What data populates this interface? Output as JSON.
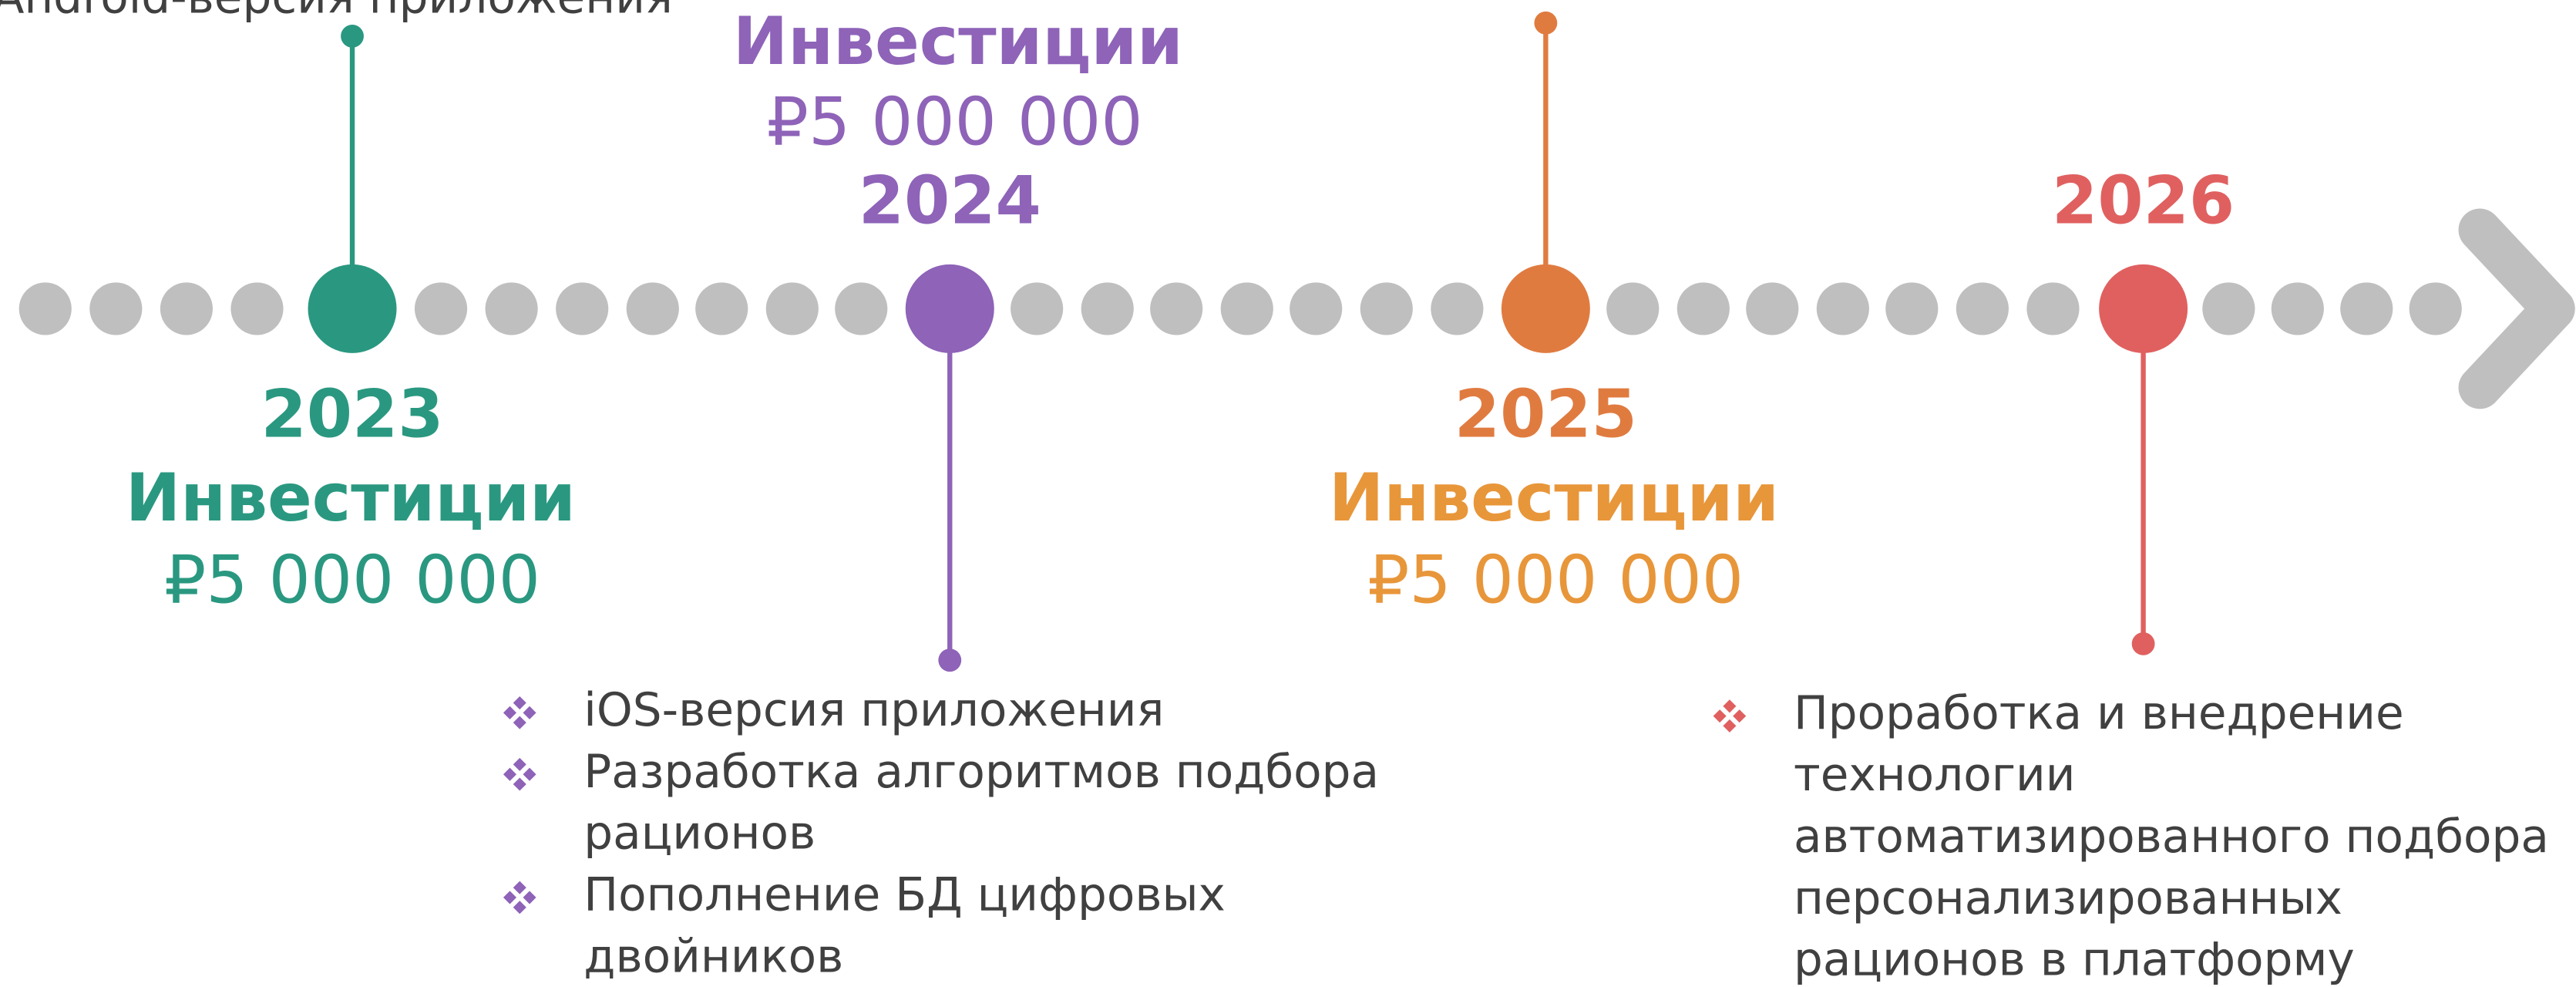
{
  "milestones": [
    {
      "year": "2023",
      "color": "#2a9880",
      "amount_color": "#2a9880",
      "investment": {
        "label": "Инвестиции",
        "amount": "₽5 000 000"
      },
      "items": [
        [
          "Android-версия приложения"
        ]
      ]
    },
    {
      "year": "2024",
      "color": "#8e63b8",
      "amount_color": "#8e63b8",
      "investment": {
        "label": "Инвестиции",
        "amount": "₽5 000 000"
      },
      "items": [
        [
          "iOS-версия приложения"
        ],
        [
          "Разработка алгоритмов подбора",
          "рационов"
        ],
        [
          "Пополнение БД цифровых",
          "двойников"
        ]
      ]
    },
    {
      "year": "2025",
      "color": "#e07b40",
      "amount_color": "#e8963a",
      "investment": {
        "label": "Инвестиции",
        "amount": "₽5 000 000"
      },
      "items": []
    },
    {
      "year": "2026",
      "color": "#e06060",
      "amount_color": "#e06060",
      "items": [
        [
          "Проработка и внедрение",
          "технологии",
          "автоматизированного подбора",
          "персонализированных",
          "рационов в платформу"
        ]
      ]
    }
  ]
}
